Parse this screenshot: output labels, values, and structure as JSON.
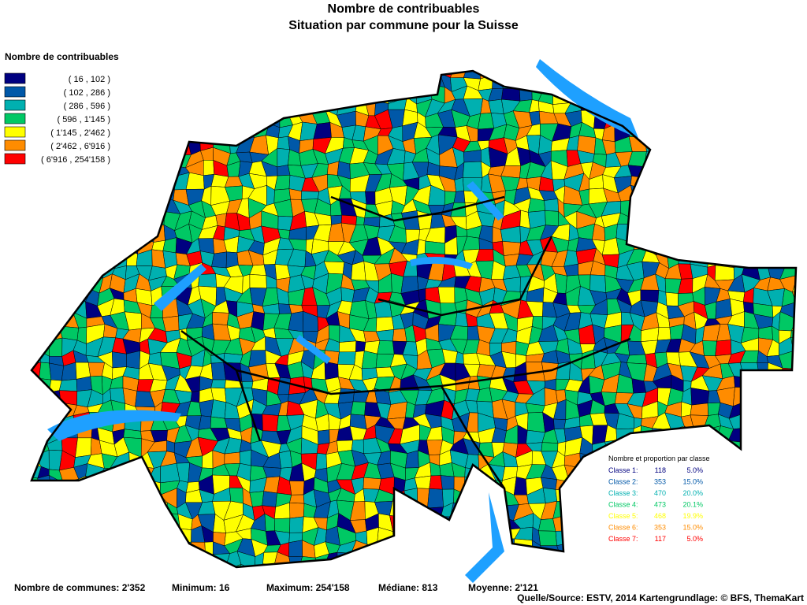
{
  "header": {
    "title": "Nombre de contribuables",
    "subtitle": "Situation par commune pour la Suisse"
  },
  "legend": {
    "title": "Nombre de contribuables",
    "classes": [
      {
        "label": "( 16 , 102 )",
        "color": "#000080"
      },
      {
        "label": "( 102 , 286 )",
        "color": "#0058a8"
      },
      {
        "label": "( 286 , 596 )",
        "color": "#00b0b0"
      },
      {
        "label": "( 596 , 1'145 )",
        "color": "#00c864"
      },
      {
        "label": "( 1'145 , 2'462 )",
        "color": "#ffff00"
      },
      {
        "label": "( 2'462 , 6'916 )",
        "color": "#ff8c00"
      },
      {
        "label": "( 6'916 , 254'158 )",
        "color": "#ff0000"
      }
    ]
  },
  "class_table": {
    "title": "Nombre et proportion par classe",
    "rows": [
      {
        "classe": "Classe  1:",
        "count": "118",
        "share": "5.0%"
      },
      {
        "classe": "Classe  2:",
        "count": "353",
        "share": "15.0%"
      },
      {
        "classe": "Classe  3:",
        "count": "470",
        "share": "20.0%"
      },
      {
        "classe": "Classe  4:",
        "count": "473",
        "share": "20.1%"
      },
      {
        "classe": "Classe  5:",
        "count": "468",
        "share": "19.9%"
      },
      {
        "classe": "Classe  6:",
        "count": "353",
        "share": "15.0%"
      },
      {
        "classe": "Classe  7:",
        "count": "117",
        "share": "5.0%"
      }
    ]
  },
  "footer": {
    "stats": [
      "Nombre de communes: 2'352",
      "Minimum: 16",
      "Maximum: 254'158",
      "Médiane: 813",
      "Moyenne: 2'121"
    ],
    "source": "Quelle/Source: ESTV, 2014 Kartengrundlage: © BFS, ThemaKart"
  }
}
